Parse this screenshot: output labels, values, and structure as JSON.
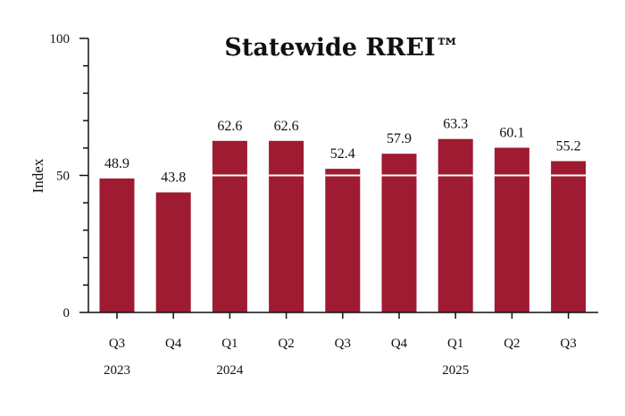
{
  "chart_data": {
    "type": "bar",
    "title": "Statewide RREI™",
    "ylabel": "Index",
    "xlabel": "",
    "ylim": [
      0,
      100
    ],
    "yticks": [
      0,
      50,
      100
    ],
    "reference_line": 50,
    "categories": [
      "Q3",
      "Q4",
      "Q1",
      "Q2",
      "Q3",
      "Q4",
      "Q1",
      "Q2",
      "Q3"
    ],
    "year_labels": [
      {
        "index": 0,
        "label": "2023"
      },
      {
        "index": 2,
        "label": "2024"
      },
      {
        "index": 6,
        "label": "2025"
      }
    ],
    "values": [
      48.9,
      43.8,
      62.6,
      62.6,
      52.4,
      57.9,
      63.3,
      60.1,
      55.2
    ],
    "value_labels": [
      "48.9",
      "43.8",
      "62.6",
      "62.6",
      "52.4",
      "57.9",
      "63.3",
      "60.1",
      "55.2"
    ],
    "bar_color": "#9e1b32",
    "grid": false,
    "legend": "none"
  }
}
